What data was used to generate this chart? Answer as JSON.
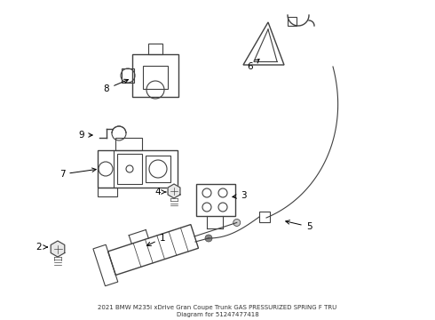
{
  "bg_color": "#ffffff",
  "line_color": "#404040",
  "label_color": "#000000",
  "fig_width": 4.9,
  "fig_height": 3.6,
  "dpi": 100,
  "title1": "2021 BMW M235i xDrive Gran Coupe Trunk GAS PRESSURIZED SPRING F TRU",
  "title2": "Diagram for 51247477418"
}
